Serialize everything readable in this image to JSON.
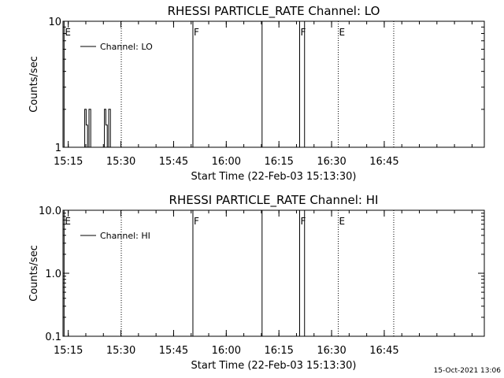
{
  "chart_data": [
    {
      "type": "line",
      "title": "RHESSI PARTICLE_RATE Channel: LO",
      "xlabel": "Start Time (22-Feb-03 15:13:30)",
      "ylabel": "Counts/sec",
      "xlim_min": [
        0,
        120
      ],
      "x_tick_labels": [
        "15:15",
        "15:30",
        "15:45",
        "16:00",
        "16:15",
        "16:30",
        "16:45"
      ],
      "x_tick_values_min": [
        1.5,
        16.5,
        31.5,
        46.5,
        61.5,
        76.5,
        91.5
      ],
      "yscale": "log",
      "ylim": [
        1,
        10
      ],
      "y_tick_labels": [
        "1",
        "10"
      ],
      "y_tick_values": [
        1,
        10
      ],
      "legend": {
        "label": "Channel: LO",
        "position": "top-left"
      },
      "series": [
        {
          "name": "Channel: LO",
          "x": [
            0,
            6.2,
            6.2,
            6.6,
            6.6,
            7.0,
            7.0,
            7.4,
            7.4,
            7.9,
            7.9,
            8.3,
            8.3,
            11.8,
            11.8,
            12.2,
            12.2,
            12.6,
            12.6,
            13.0,
            13.0,
            13.5,
            13.5,
            13.9,
            13.9,
            120
          ],
          "y": [
            1,
            1,
            2,
            2,
            1.5,
            1.5,
            1,
            1,
            2,
            2,
            1,
            1,
            1,
            1,
            2,
            2,
            1.5,
            1.5,
            1,
            1,
            2,
            2,
            1,
            1,
            1,
            1
          ]
        }
      ],
      "event_lines": [
        {
          "x": 0.3,
          "style": "solid",
          "label": "E"
        },
        {
          "x": 16.6,
          "style": "dotted",
          "label": ""
        },
        {
          "x": 37.0,
          "style": "solid",
          "label": "F"
        },
        {
          "x": 56.7,
          "style": "solid",
          "label": ""
        },
        {
          "x": 67.4,
          "style": "solid",
          "label": "F"
        },
        {
          "x": 68.8,
          "style": "solid",
          "label": ""
        },
        {
          "x": 78.4,
          "style": "dotted",
          "label": "E"
        },
        {
          "x": 94.2,
          "style": "dotted",
          "label": ""
        }
      ]
    },
    {
      "type": "line",
      "title": "RHESSI PARTICLE_RATE Channel: HI",
      "xlabel": "Start Time (22-Feb-03 15:13:30)",
      "ylabel": "Counts/sec",
      "xlim_min": [
        0,
        120
      ],
      "x_tick_labels": [
        "15:15",
        "15:30",
        "15:45",
        "16:00",
        "16:15",
        "16:30",
        "16:45"
      ],
      "x_tick_values_min": [
        1.5,
        16.5,
        31.5,
        46.5,
        61.5,
        76.5,
        91.5
      ],
      "yscale": "log",
      "ylim": [
        0.1,
        10
      ],
      "y_tick_labels": [
        "0.1",
        "1.0",
        "10.0"
      ],
      "y_tick_values": [
        0.1,
        1,
        10
      ],
      "legend": {
        "label": "Channel: HI",
        "position": "top-left"
      },
      "series": [
        {
          "name": "Channel: HI",
          "x": [],
          "y": []
        }
      ],
      "event_lines": [
        {
          "x": 0.3,
          "style": "solid",
          "label": "E"
        },
        {
          "x": 16.6,
          "style": "dotted",
          "label": ""
        },
        {
          "x": 37.0,
          "style": "solid",
          "label": "F"
        },
        {
          "x": 56.7,
          "style": "solid",
          "label": ""
        },
        {
          "x": 67.4,
          "style": "solid",
          "label": "F"
        },
        {
          "x": 68.8,
          "style": "solid",
          "label": ""
        },
        {
          "x": 78.4,
          "style": "dotted",
          "label": "E"
        },
        {
          "x": 94.2,
          "style": "dotted",
          "label": ""
        }
      ]
    }
  ],
  "footer": {
    "timestamp": "15-Oct-2021 13:06"
  }
}
